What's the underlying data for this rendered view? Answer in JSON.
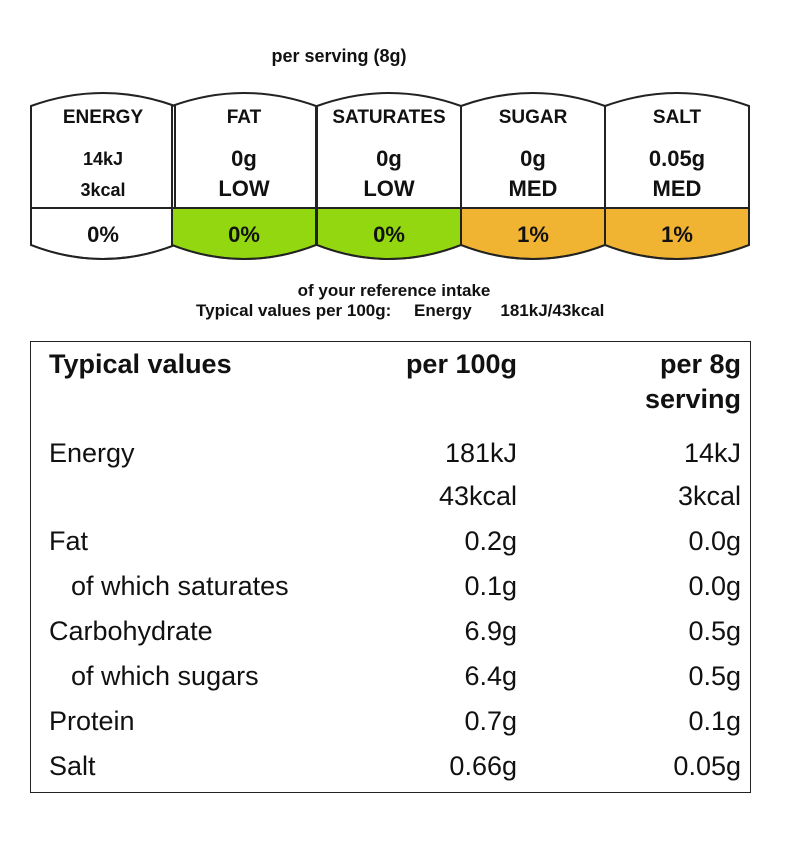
{
  "label": {
    "serving_title": "per serving  (8g)",
    "tiles": [
      {
        "name": "ENERGY",
        "value": "14kJ",
        "level": "3kcal",
        "percent": "0%",
        "color": "#ffffff"
      },
      {
        "name": "FAT",
        "value": "0g",
        "level": "LOW",
        "percent": "0%",
        "color": "#92d70f"
      },
      {
        "name": "SATURATES",
        "value": "0g",
        "level": "LOW",
        "percent": "0%",
        "color": "#92d70f"
      },
      {
        "name": "SUGAR",
        "value": "0g",
        "level": "MED",
        "percent": "1%",
        "color": "#f0b432"
      },
      {
        "name": "SALT",
        "value": "0.05g",
        "level": "MED",
        "percent": "1%",
        "color": "#f0b432"
      }
    ],
    "reference_intake": "of your reference intake",
    "typical_prefix": "Typical values per 100g:",
    "typical_energy_label": "Energy",
    "typical_energy_value": "181kJ/43kcal"
  },
  "table": {
    "headers": {
      "col1": "Typical values",
      "col2": "per 100g",
      "col3_line1": "per 8g",
      "col3_line2": "serving"
    },
    "rows": [
      {
        "name": "Energy",
        "per100": "181kJ",
        "perserving": "14kJ",
        "indent": false
      },
      {
        "name": "",
        "per100": "43kcal",
        "perserving": "3kcal",
        "indent": false
      },
      {
        "name": "Fat",
        "per100": "0.2g",
        "perserving": "0.0g",
        "indent": false
      },
      {
        "name": "of which saturates",
        "per100": "0.1g",
        "perserving": "0.0g",
        "indent": true
      },
      {
        "name": "Carbohydrate",
        "per100": "6.9g",
        "perserving": "0.5g",
        "indent": false
      },
      {
        "name": "of which sugars",
        "per100": "6.4g",
        "perserving": "0.5g",
        "indent": true
      },
      {
        "name": "Protein",
        "per100": "0.7g",
        "perserving": "0.1g",
        "indent": false
      },
      {
        "name": "Salt",
        "per100": "0.66g",
        "perserving": "0.05g",
        "indent": false
      }
    ]
  }
}
